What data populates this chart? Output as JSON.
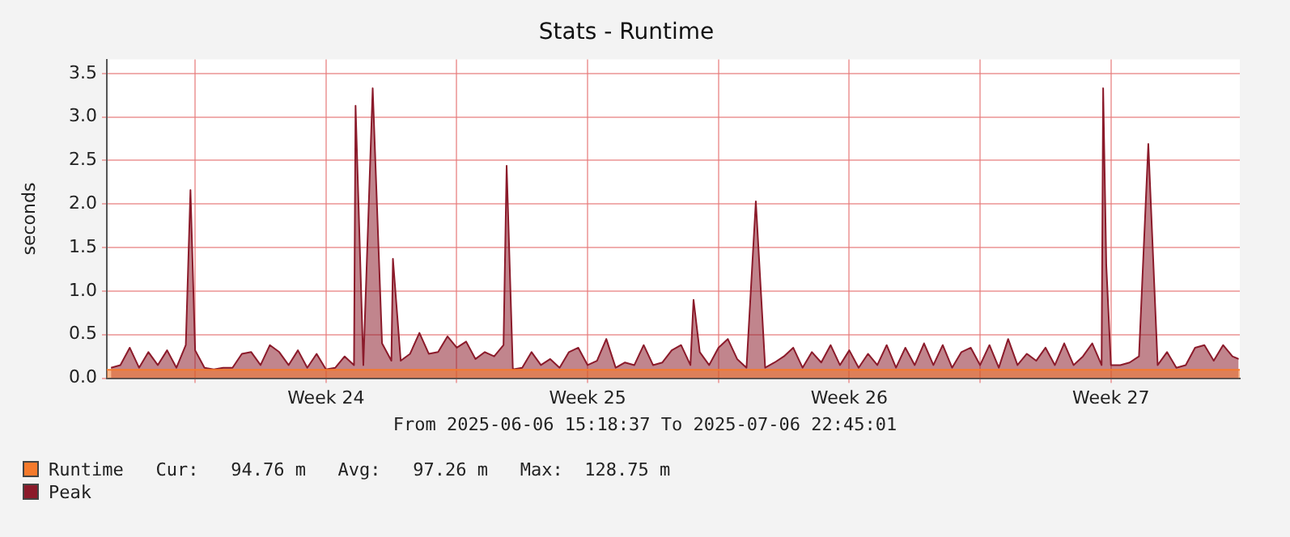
{
  "chart_data": {
    "type": "area",
    "title": "Stats - Runtime",
    "ylabel": "seconds",
    "annotations": [
      "From 2025-06-06 15:18:37 To 2025-07-06 22:45:01",
      "Cur:   94.76 m   Avg:   97.26 m   Max:  128.75 m"
    ],
    "xlim": [
      "2025-06-06T15:18",
      "2025-07-06T22:45"
    ],
    "xticks": [
      {
        "value": "2025-06-09T00:00",
        "label": null
      },
      {
        "value": "2025-06-12T12:00",
        "label": "Week 24"
      },
      {
        "value": "2025-06-16T00:00",
        "label": null
      },
      {
        "value": "2025-06-19T12:00",
        "label": "Week 25"
      },
      {
        "value": "2025-06-23T00:00",
        "label": null
      },
      {
        "value": "2025-06-26T12:00",
        "label": "Week 26"
      },
      {
        "value": "2025-06-30T00:00",
        "label": null
      },
      {
        "value": "2025-07-03T12:00",
        "label": "Week 27"
      }
    ],
    "ylim": [
      0,
      3.66
    ],
    "yticks": [
      {
        "value": 0,
        "label": "0.0"
      },
      {
        "value": 0.5,
        "label": "0.5"
      },
      {
        "value": 1,
        "label": "1.0"
      },
      {
        "value": 1.5,
        "label": "1.5"
      },
      {
        "value": 2,
        "label": "2.0"
      },
      {
        "value": 2.5,
        "label": "2.5"
      },
      {
        "value": 3,
        "label": "3.0"
      },
      {
        "value": 3.5,
        "label": "3.5"
      }
    ],
    "grid": true,
    "legend": "bottom left",
    "series": [
      {
        "name": "Runtime",
        "color": "#f57a2c",
        "x": [
          "2025-06-06T15:18",
          "2025-07-06T22:45"
        ],
        "values": [
          0.095,
          0.095
        ]
      },
      {
        "name": "Peak",
        "color": "#8b1a2a",
        "x": [
          "2025-06-06T18:00",
          "2025-06-07T00:00",
          "2025-06-07T06:00",
          "2025-06-07T12:00",
          "2025-06-07T18:00",
          "2025-06-08T00:00",
          "2025-06-08T06:00",
          "2025-06-08T12:00",
          "2025-06-08T18:00",
          "2025-06-08T21:00",
          "2025-06-09T00:00",
          "2025-06-09T06:00",
          "2025-06-09T12:00",
          "2025-06-09T18:00",
          "2025-06-10T00:00",
          "2025-06-10T06:00",
          "2025-06-10T12:00",
          "2025-06-10T18:00",
          "2025-06-11T00:00",
          "2025-06-11T06:00",
          "2025-06-11T12:00",
          "2025-06-11T18:00",
          "2025-06-12T00:00",
          "2025-06-12T06:00",
          "2025-06-12T12:00",
          "2025-06-12T18:00",
          "2025-06-13T00:00",
          "2025-06-13T06:00",
          "2025-06-13T07:00",
          "2025-06-13T12:00",
          "2025-06-13T18:00",
          "2025-06-14T00:00",
          "2025-06-14T06:00",
          "2025-06-14T07:00",
          "2025-06-14T12:00",
          "2025-06-14T18:00",
          "2025-06-15T00:00",
          "2025-06-15T06:00",
          "2025-06-15T12:00",
          "2025-06-15T18:00",
          "2025-06-16T00:00",
          "2025-06-16T06:00",
          "2025-06-16T12:00",
          "2025-06-16T18:00",
          "2025-06-17T00:00",
          "2025-06-17T06:00",
          "2025-06-17T08:00",
          "2025-06-17T12:00",
          "2025-06-17T18:00",
          "2025-06-18T00:00",
          "2025-06-18T06:00",
          "2025-06-18T12:00",
          "2025-06-18T18:00",
          "2025-06-19T00:00",
          "2025-06-19T06:00",
          "2025-06-19T12:00",
          "2025-06-19T18:00",
          "2025-06-20T00:00",
          "2025-06-20T06:00",
          "2025-06-20T12:00",
          "2025-06-20T18:00",
          "2025-06-21T00:00",
          "2025-06-21T06:00",
          "2025-06-21T12:00",
          "2025-06-21T18:00",
          "2025-06-22T00:00",
          "2025-06-22T06:00",
          "2025-06-22T08:00",
          "2025-06-22T12:00",
          "2025-06-22T18:00",
          "2025-06-23T00:00",
          "2025-06-23T06:00",
          "2025-06-23T12:00",
          "2025-06-23T18:00",
          "2025-06-24T00:00",
          "2025-06-24T06:00",
          "2025-06-24T12:00",
          "2025-06-24T18:00",
          "2025-06-25T00:00",
          "2025-06-25T06:00",
          "2025-06-25T12:00",
          "2025-06-25T18:00",
          "2025-06-26T00:00",
          "2025-06-26T06:00",
          "2025-06-26T12:00",
          "2025-06-26T18:00",
          "2025-06-27T00:00",
          "2025-06-27T06:00",
          "2025-06-27T12:00",
          "2025-06-27T18:00",
          "2025-06-28T00:00",
          "2025-06-28T06:00",
          "2025-06-28T12:00",
          "2025-06-28T18:00",
          "2025-06-29T00:00",
          "2025-06-29T06:00",
          "2025-06-29T12:00",
          "2025-06-29T18:00",
          "2025-06-30T00:00",
          "2025-06-30T06:00",
          "2025-06-30T12:00",
          "2025-06-30T18:00",
          "2025-07-01T00:00",
          "2025-07-01T06:00",
          "2025-07-01T12:00",
          "2025-07-01T18:00",
          "2025-07-02T00:00",
          "2025-07-02T06:00",
          "2025-07-02T12:00",
          "2025-07-02T18:00",
          "2025-07-03T00:00",
          "2025-07-03T06:00",
          "2025-07-03T07:00",
          "2025-07-03T09:00",
          "2025-07-03T12:00",
          "2025-07-03T18:00",
          "2025-07-04T00:00",
          "2025-07-04T06:00",
          "2025-07-04T12:00",
          "2025-07-04T18:00",
          "2025-07-05T00:00",
          "2025-07-05T06:00",
          "2025-07-05T12:00",
          "2025-07-05T18:00",
          "2025-07-06T00:00",
          "2025-07-06T06:00",
          "2025-07-06T12:00",
          "2025-07-06T18:00",
          "2025-07-06T22:00"
        ],
        "values": [
          0.12,
          0.15,
          0.35,
          0.12,
          0.3,
          0.15,
          0.32,
          0.12,
          0.38,
          2.16,
          0.32,
          0.12,
          0.1,
          0.12,
          0.12,
          0.28,
          0.3,
          0.15,
          0.38,
          0.3,
          0.15,
          0.32,
          0.12,
          0.28,
          0.1,
          0.12,
          0.25,
          0.15,
          3.13,
          0.15,
          3.33,
          0.4,
          0.2,
          1.37,
          0.2,
          0.28,
          0.52,
          0.28,
          0.3,
          0.48,
          0.35,
          0.42,
          0.22,
          0.3,
          0.25,
          0.38,
          2.44,
          0.1,
          0.12,
          0.3,
          0.15,
          0.22,
          0.12,
          0.3,
          0.35,
          0.15,
          0.2,
          0.45,
          0.12,
          0.18,
          0.15,
          0.38,
          0.15,
          0.18,
          0.32,
          0.38,
          0.15,
          0.9,
          0.3,
          0.15,
          0.35,
          0.45,
          0.22,
          0.12,
          2.03,
          0.12,
          0.18,
          0.25,
          0.35,
          0.12,
          0.3,
          0.18,
          0.38,
          0.15,
          0.32,
          0.12,
          0.28,
          0.15,
          0.38,
          0.12,
          0.35,
          0.15,
          0.4,
          0.15,
          0.38,
          0.12,
          0.3,
          0.35,
          0.15,
          0.38,
          0.12,
          0.45,
          0.15,
          0.28,
          0.2,
          0.35,
          0.15,
          0.4,
          0.15,
          0.25,
          0.4,
          0.15,
          3.33,
          1.3,
          0.15,
          0.15,
          0.18,
          0.25,
          2.69,
          0.15,
          0.3,
          0.12,
          0.15,
          0.35,
          0.38,
          0.2,
          0.38,
          0.25,
          0.22
        ]
      }
    ]
  }
}
